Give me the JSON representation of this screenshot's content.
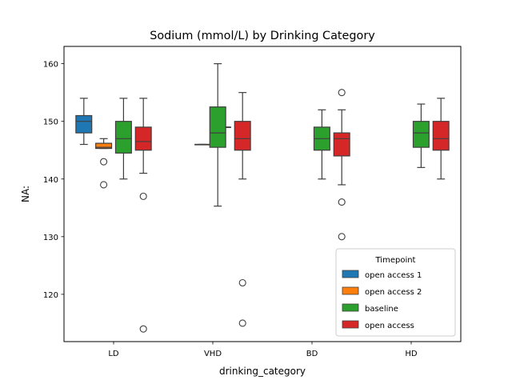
{
  "chart_data": {
    "type": "box",
    "title": "Sodium (mmol/L) by Drinking Category",
    "xlabel": "drinking_category",
    "ylabel": "NA:",
    "ylim": [
      111.8,
      163.0
    ],
    "yticks": [
      120,
      130,
      140,
      150,
      160
    ],
    "categories": [
      "LD",
      "VHD",
      "BD",
      "HD"
    ],
    "legend": {
      "title": "Timepoint",
      "position": "lower right"
    },
    "series": [
      {
        "name": "open access 1",
        "color": "#1f77b4",
        "boxes": [
          {
            "category": "LD",
            "whislo": 146,
            "q1": 148,
            "med": 150,
            "q3": 151,
            "whishi": 154,
            "fliers": []
          },
          null,
          null,
          null
        ]
      },
      {
        "name": "open access 2",
        "color": "#ff7f0e",
        "boxes": [
          {
            "category": "LD",
            "whislo": 145.3,
            "q1": 145.3,
            "med": 145.5,
            "q3": 146.2,
            "whishi": 147,
            "fliers": [
              143,
              139
            ]
          },
          {
            "category": "VHD",
            "whislo": 146,
            "q1": 146,
            "med": 146,
            "q3": 146,
            "whishi": 146,
            "fliers": []
          },
          null,
          null
        ]
      },
      {
        "name": "baseline",
        "color": "#2ca02c",
        "boxes": [
          {
            "category": "LD",
            "whislo": 140,
            "q1": 144.5,
            "med": 147,
            "q3": 150,
            "whishi": 154,
            "fliers": []
          },
          {
            "category": "VHD",
            "whislo": 149,
            "q1": 149,
            "med": 149,
            "q3": 149,
            "whishi": 149,
            "fliers": []
          },
          {
            "category": "BD",
            "whislo": 140,
            "q1": 145,
            "med": 147,
            "q3": 149,
            "whishi": 152,
            "fliers": []
          },
          {
            "category": "HD",
            "whislo": 142,
            "q1": 145.5,
            "med": 148,
            "q3": 150,
            "whishi": 153,
            "fliers": []
          }
        ]
      },
      {
        "name": "open access",
        "color": "#d62728",
        "boxes": [
          {
            "category": "LD",
            "whislo": 141,
            "q1": 145,
            "med": 146.5,
            "q3": 149,
            "whishi": 154,
            "fliers": [
              137,
              114
            ]
          },
          {
            "category": "VHD",
            "whislo": 140,
            "q1": 145,
            "med": 147,
            "q3": 150,
            "whishi": 155,
            "fliers": [
              122,
              115
            ]
          },
          {
            "category": "BD",
            "whislo": 139,
            "q1": 144,
            "med": 147,
            "q3": 148,
            "whishi": 152,
            "fliers": [
              155,
              136,
              130
            ]
          },
          {
            "category": "HD",
            "whislo": 140,
            "q1": 145,
            "med": 147,
            "q3": 150,
            "whishi": 154,
            "fliers": []
          }
        ]
      }
    ],
    "extra_groups": [
      {
        "category": "VHD",
        "color": "#2ca02c",
        "whislo": 135.3,
        "q1": 145.5,
        "med": 148,
        "q3": 152.5,
        "whishi": 160,
        "fliers": []
      }
    ]
  }
}
